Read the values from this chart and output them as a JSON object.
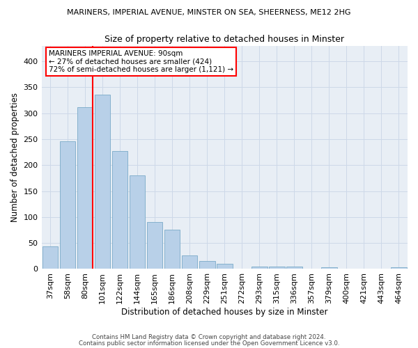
{
  "title_line1": "MARINERS, IMPERIAL AVENUE, MINSTER ON SEA, SHEERNESS, ME12 2HG",
  "title_line2": "Size of property relative to detached houses in Minster",
  "xlabel": "Distribution of detached houses by size in Minster",
  "ylabel": "Number of detached properties",
  "categories": [
    "37sqm",
    "58sqm",
    "80sqm",
    "101sqm",
    "122sqm",
    "144sqm",
    "165sqm",
    "186sqm",
    "208sqm",
    "229sqm",
    "251sqm",
    "272sqm",
    "293sqm",
    "315sqm",
    "336sqm",
    "357sqm",
    "379sqm",
    "400sqm",
    "421sqm",
    "443sqm",
    "464sqm"
  ],
  "values": [
    44,
    246,
    312,
    335,
    227,
    180,
    90,
    75,
    26,
    16,
    10,
    0,
    5,
    5,
    4,
    0,
    3,
    0,
    0,
    0,
    3
  ],
  "bar_color": "#b8d0e8",
  "bar_edge_color": "#7aaac8",
  "grid_color": "#cdd8e8",
  "background_color": "#e8eef5",
  "annotation_text_line1": "MARINERS IMPERIAL AVENUE: 90sqm",
  "annotation_text_line2": "← 27% of detached houses are smaller (424)",
  "annotation_text_line3": "72% of semi-detached houses are larger (1,121) →",
  "ylim": [
    0,
    430
  ],
  "yticks": [
    0,
    50,
    100,
    150,
    200,
    250,
    300,
    350,
    400
  ],
  "footnote1": "Contains HM Land Registry data © Crown copyright and database right 2024.",
  "footnote2": "Contains public sector information licensed under the Open Government Licence v3.0."
}
